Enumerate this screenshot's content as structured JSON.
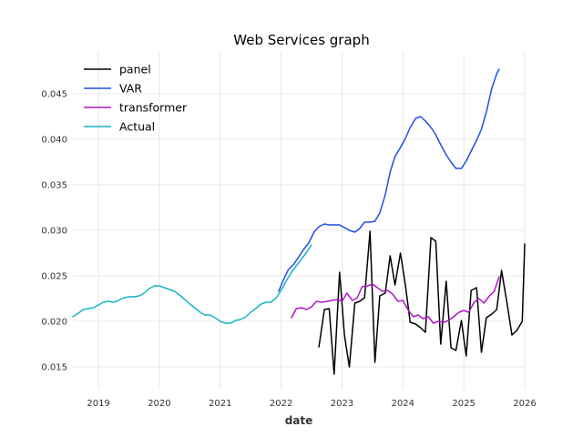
{
  "chart_data": {
    "type": "line",
    "title": "Web Services graph",
    "xlabel": "date",
    "ylabel": "",
    "xlim": [
      2018.58,
      2026.0
    ],
    "ylim": [
      0.0125,
      0.0495
    ],
    "x_ticks": [
      {
        "value": 2019,
        "label": "2019"
      },
      {
        "value": 2020,
        "label": "2020"
      },
      {
        "value": 2021,
        "label": "2021"
      },
      {
        "value": 2022,
        "label": "2022"
      },
      {
        "value": 2023,
        "label": "2023"
      },
      {
        "value": 2024,
        "label": "2024"
      },
      {
        "value": 2025,
        "label": "2025"
      },
      {
        "value": 2026,
        "label": "2026"
      }
    ],
    "y_ticks": [
      {
        "value": 0.015,
        "label": "0.015"
      },
      {
        "value": 0.02,
        "label": "0.020"
      },
      {
        "value": 0.025,
        "label": "0.025"
      },
      {
        "value": 0.03,
        "label": "0.030"
      },
      {
        "value": 0.035,
        "label": "0.035"
      },
      {
        "value": 0.04,
        "label": "0.040"
      },
      {
        "value": 0.045,
        "label": "0.045"
      }
    ],
    "grid": true,
    "legend_position": "top-left",
    "series": [
      {
        "name": "panel",
        "color": "#000000",
        "x": [
          2022.62,
          2022.71,
          2022.79,
          2022.87,
          2022.96,
          2023.04,
          2023.12,
          2023.21,
          2023.29,
          2023.37,
          2023.46,
          2023.54,
          2023.62,
          2023.71,
          2023.79,
          2023.87,
          2023.96,
          2024.04,
          2024.12,
          2024.21,
          2024.29,
          2024.37,
          2024.46,
          2024.54,
          2024.62,
          2024.71,
          2024.79,
          2024.87,
          2024.96,
          2025.04,
          2025.12,
          2025.21,
          2025.29,
          2025.37,
          2025.46,
          2025.54,
          2025.62,
          2025.71,
          2025.79,
          2025.87,
          2025.96,
          2026.0
        ],
        "y": [
          0.0172,
          0.0213,
          0.0214,
          0.0142,
          0.0254,
          0.0185,
          0.015,
          0.022,
          0.0222,
          0.0226,
          0.0299,
          0.0155,
          0.0228,
          0.0231,
          0.0272,
          0.024,
          0.0275,
          0.024,
          0.0199,
          0.0197,
          0.0193,
          0.0188,
          0.0292,
          0.0288,
          0.0175,
          0.0244,
          0.0171,
          0.0168,
          0.0201,
          0.0162,
          0.0234,
          0.0237,
          0.0166,
          0.0204,
          0.0208,
          0.0213,
          0.0256,
          0.022,
          0.0185,
          0.019,
          0.02,
          0.0285
        ]
      },
      {
        "name": "VAR",
        "color": "#1f4fe8",
        "x": [
          2021.96,
          2022.04,
          2022.12,
          2022.21,
          2022.29,
          2022.37,
          2022.46,
          2022.54,
          2022.62,
          2022.71,
          2022.79,
          2022.87,
          2022.96,
          2023.04,
          2023.12,
          2023.21,
          2023.29,
          2023.37,
          2023.46,
          2023.54,
          2023.62,
          2023.71,
          2023.79,
          2023.87,
          2023.96,
          2024.04,
          2024.12,
          2024.21,
          2024.29,
          2024.37,
          2024.46,
          2024.54,
          2024.62,
          2024.71,
          2024.79,
          2024.87,
          2024.96,
          2025.04,
          2025.12,
          2025.21,
          2025.29,
          2025.37,
          2025.46,
          2025.54,
          2025.58
        ],
        "y": [
          0.0233,
          0.0246,
          0.0257,
          0.0263,
          0.0271,
          0.0279,
          0.0287,
          0.0298,
          0.0304,
          0.0307,
          0.0306,
          0.0306,
          0.0306,
          0.0303,
          0.03,
          0.0298,
          0.0302,
          0.0309,
          0.0309,
          0.031,
          0.0319,
          0.0339,
          0.0364,
          0.0381,
          0.0391,
          0.0401,
          0.0413,
          0.0423,
          0.0425,
          0.042,
          0.0413,
          0.0405,
          0.0394,
          0.0383,
          0.0375,
          0.0368,
          0.0368,
          0.0376,
          0.0387,
          0.0399,
          0.0411,
          0.043,
          0.0456,
          0.0472,
          0.0477
        ]
      },
      {
        "name": "transformer",
        "color": "#b016c6",
        "x": [
          2022.17,
          2022.25,
          2022.33,
          2022.42,
          2022.5,
          2022.58,
          2022.67,
          2022.75,
          2022.83,
          2022.92,
          2023.0,
          2023.08,
          2023.17,
          2023.25,
          2023.33,
          2023.42,
          2023.5,
          2023.58,
          2023.67,
          2023.75,
          2023.83,
          2023.92,
          2024.0,
          2024.08,
          2024.17,
          2024.25,
          2024.33,
          2024.42,
          2024.5,
          2024.58,
          2024.67,
          2024.75,
          2024.83,
          2024.92,
          2025.0,
          2025.08,
          2025.17,
          2025.25,
          2025.33,
          2025.42,
          2025.5,
          2025.58
        ],
        "y": [
          0.0204,
          0.0214,
          0.0215,
          0.0213,
          0.0216,
          0.0222,
          0.0221,
          0.0222,
          0.0223,
          0.0224,
          0.0222,
          0.0231,
          0.0223,
          0.0226,
          0.0238,
          0.0239,
          0.0241,
          0.0237,
          0.0233,
          0.0234,
          0.023,
          0.0222,
          0.0223,
          0.0213,
          0.0205,
          0.0207,
          0.0203,
          0.0205,
          0.0198,
          0.02,
          0.0199,
          0.0201,
          0.0205,
          0.021,
          0.0212,
          0.021,
          0.0221,
          0.0225,
          0.022,
          0.0228,
          0.0233,
          0.0249
        ]
      },
      {
        "name": "Actual",
        "color": "#17b3c6",
        "x": [
          2018.58,
          2018.67,
          2018.75,
          2018.83,
          2018.92,
          2019.0,
          2019.08,
          2019.17,
          2019.25,
          2019.33,
          2019.42,
          2019.5,
          2019.58,
          2019.67,
          2019.75,
          2019.83,
          2019.92,
          2020.0,
          2020.08,
          2020.17,
          2020.25,
          2020.33,
          2020.42,
          2020.5,
          2020.58,
          2020.67,
          2020.75,
          2020.83,
          2020.92,
          2021.0,
          2021.08,
          2021.17,
          2021.25,
          2021.33,
          2021.42,
          2021.5,
          2021.58,
          2021.67,
          2021.75,
          2021.83,
          2021.92,
          2022.0,
          2022.08,
          2022.17,
          2022.25,
          2022.33,
          2022.42,
          2022.5
        ],
        "y": [
          0.0205,
          0.0209,
          0.0213,
          0.0214,
          0.0215,
          0.0218,
          0.0221,
          0.0222,
          0.0221,
          0.0223,
          0.0226,
          0.0227,
          0.0227,
          0.0228,
          0.0231,
          0.0236,
          0.0239,
          0.0239,
          0.0237,
          0.0235,
          0.0233,
          0.0229,
          0.0224,
          0.0219,
          0.0215,
          0.021,
          0.0207,
          0.0207,
          0.0204,
          0.02,
          0.0198,
          0.0198,
          0.0201,
          0.0202,
          0.0205,
          0.021,
          0.0214,
          0.0219,
          0.0221,
          0.0221,
          0.0226,
          0.0234,
          0.0244,
          0.0254,
          0.0261,
          0.0268,
          0.0276,
          0.0284
        ]
      }
    ]
  }
}
